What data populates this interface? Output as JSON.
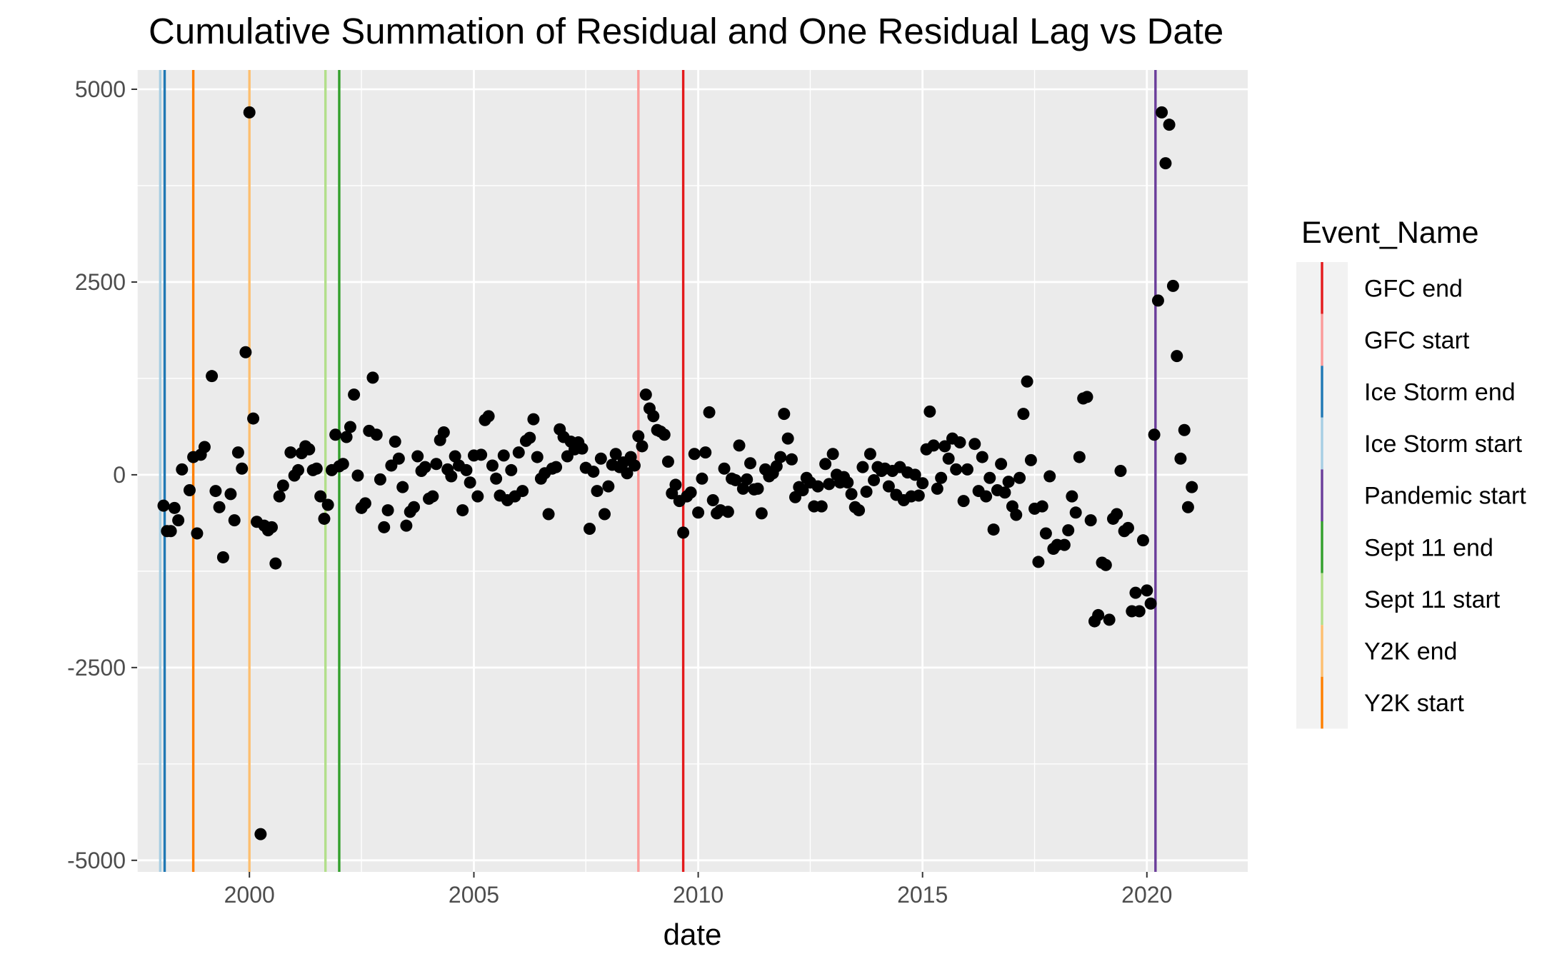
{
  "chart_data": {
    "type": "scatter",
    "title": "Cumulative Summation of Residual and One Residual Lag vs Date",
    "xlabel": "date",
    "ylabel": "",
    "x_type": "date",
    "xlim": [
      "1997-07-01",
      "2022-04-01"
    ],
    "ylim": [
      -5150,
      5250
    ],
    "x_ticks": [
      {
        "value": "2000-01-01",
        "label": "2000"
      },
      {
        "value": "2005-01-01",
        "label": "2005"
      },
      {
        "value": "2010-01-01",
        "label": "2010"
      },
      {
        "value": "2015-01-01",
        "label": "2015"
      },
      {
        "value": "2020-01-01",
        "label": "2020"
      }
    ],
    "x_minor_ticks": [
      "1997-07-01",
      "2002-07-01",
      "2007-07-01",
      "2012-07-01",
      "2017-07-01"
    ],
    "y_ticks": [
      {
        "value": 5000,
        "label": "5000"
      },
      {
        "value": 2500,
        "label": "2500"
      },
      {
        "value": 0,
        "label": "0"
      },
      {
        "value": -2500,
        "label": "-2500"
      },
      {
        "value": -5000,
        "label": "-5000"
      }
    ],
    "y_minor_ticks": [
      3750,
      1250,
      -1250,
      -3750
    ],
    "grid": true,
    "background": "#ebebeb",
    "point_color": "#000000",
    "legend": {
      "title": "Event_Name",
      "placement": "right",
      "entries": [
        {
          "label": "GFC end",
          "color": "#e31a1c"
        },
        {
          "label": "GFC start",
          "color": "#fb9a99"
        },
        {
          "label": "Ice Storm end",
          "color": "#1f78b4"
        },
        {
          "label": "Ice Storm start",
          "color": "#a6cee3"
        },
        {
          "label": "Pandemic start",
          "color": "#6a3d9a"
        },
        {
          "label": "Sept 11 end",
          "color": "#33a02c"
        },
        {
          "label": "Sept 11 start",
          "color": "#b2df8a"
        },
        {
          "label": "Y2K end",
          "color": "#fdbf6f"
        },
        {
          "label": "Y2K start",
          "color": "#ff7f00"
        }
      ]
    },
    "event_lines": [
      {
        "event": "Ice Storm start",
        "date": "1998-01-05",
        "color": "#a6cee3"
      },
      {
        "event": "Ice Storm end",
        "date": "1998-02-10",
        "color": "#1f78b4"
      },
      {
        "event": "Y2K start",
        "date": "1998-10-01",
        "color": "#ff7f00"
      },
      {
        "event": "Y2K end",
        "date": "2000-01-01",
        "color": "#fdbf6f"
      },
      {
        "event": "Sept 11 start",
        "date": "2001-09-11",
        "color": "#b2df8a"
      },
      {
        "event": "Sept 11 end",
        "date": "2002-01-01",
        "color": "#33a02c"
      },
      {
        "event": "GFC start",
        "date": "2008-09-01",
        "color": "#fb9a99"
      },
      {
        "event": "GFC end",
        "date": "2009-09-01",
        "color": "#e31a1c"
      },
      {
        "event": "Pandemic start",
        "date": "2020-03-11",
        "color": "#6a3d9a"
      }
    ],
    "points": [
      {
        "x": "1998-02-01",
        "y": -400
      },
      {
        "x": "1998-03-01",
        "y": -730
      },
      {
        "x": "1998-04-01",
        "y": -730
      },
      {
        "x": "1998-05-01",
        "y": -430
      },
      {
        "x": "1998-06-01",
        "y": -590
      },
      {
        "x": "1998-07-01",
        "y": 70
      },
      {
        "x": "1998-09-01",
        "y": -200
      },
      {
        "x": "1998-10-01",
        "y": 230
      },
      {
        "x": "1998-11-01",
        "y": -760
      },
      {
        "x": "1998-12-01",
        "y": 260
      },
      {
        "x": "1999-01-01",
        "y": 360
      },
      {
        "x": "1999-03-01",
        "y": 1280
      },
      {
        "x": "1999-04-01",
        "y": -210
      },
      {
        "x": "1999-05-01",
        "y": -420
      },
      {
        "x": "1999-06-01",
        "y": -1070
      },
      {
        "x": "1999-08-01",
        "y": -250
      },
      {
        "x": "1999-09-01",
        "y": -590
      },
      {
        "x": "1999-10-01",
        "y": 290
      },
      {
        "x": "1999-11-01",
        "y": 80
      },
      {
        "x": "1999-12-01",
        "y": 1590
      },
      {
        "x": "2000-01-01",
        "y": 4700
      },
      {
        "x": "2000-02-01",
        "y": 730
      },
      {
        "x": "2000-03-01",
        "y": -610
      },
      {
        "x": "2000-04-01",
        "y": -4660
      },
      {
        "x": "2000-05-01",
        "y": -660
      },
      {
        "x": "2000-06-01",
        "y": -720
      },
      {
        "x": "2000-07-01",
        "y": -680
      },
      {
        "x": "2000-08-01",
        "y": -1150
      },
      {
        "x": "2000-09-01",
        "y": -280
      },
      {
        "x": "2000-10-01",
        "y": -140
      },
      {
        "x": "2000-12-01",
        "y": 290
      },
      {
        "x": "2001-01-01",
        "y": -10
      },
      {
        "x": "2001-02-01",
        "y": 60
      },
      {
        "x": "2001-03-01",
        "y": 280
      },
      {
        "x": "2001-04-01",
        "y": 370
      },
      {
        "x": "2001-05-01",
        "y": 330
      },
      {
        "x": "2001-06-01",
        "y": 60
      },
      {
        "x": "2001-07-01",
        "y": 80
      },
      {
        "x": "2001-08-01",
        "y": -280
      },
      {
        "x": "2001-09-01",
        "y": -570
      },
      {
        "x": "2001-10-01",
        "y": -390
      },
      {
        "x": "2001-11-01",
        "y": 60
      },
      {
        "x": "2001-12-01",
        "y": 520
      },
      {
        "x": "2002-01-01",
        "y": 110
      },
      {
        "x": "2002-02-01",
        "y": 140
      },
      {
        "x": "2002-03-01",
        "y": 490
      },
      {
        "x": "2002-04-01",
        "y": 620
      },
      {
        "x": "2002-05-01",
        "y": 1040
      },
      {
        "x": "2002-06-01",
        "y": -10
      },
      {
        "x": "2002-07-01",
        "y": -430
      },
      {
        "x": "2002-08-01",
        "y": -370
      },
      {
        "x": "2002-09-01",
        "y": 570
      },
      {
        "x": "2002-10-01",
        "y": 1260
      },
      {
        "x": "2002-11-01",
        "y": 520
      },
      {
        "x": "2002-12-01",
        "y": -60
      },
      {
        "x": "2003-01-01",
        "y": -680
      },
      {
        "x": "2003-02-01",
        "y": -460
      },
      {
        "x": "2003-03-01",
        "y": 120
      },
      {
        "x": "2003-04-01",
        "y": 430
      },
      {
        "x": "2003-05-01",
        "y": 210
      },
      {
        "x": "2003-06-01",
        "y": -160
      },
      {
        "x": "2003-07-01",
        "y": -660
      },
      {
        "x": "2003-08-01",
        "y": -480
      },
      {
        "x": "2003-09-01",
        "y": -420
      },
      {
        "x": "2003-10-01",
        "y": 240
      },
      {
        "x": "2003-11-01",
        "y": 50
      },
      {
        "x": "2003-12-01",
        "y": 100
      },
      {
        "x": "2004-01-01",
        "y": -310
      },
      {
        "x": "2004-02-01",
        "y": -280
      },
      {
        "x": "2004-03-01",
        "y": 140
      },
      {
        "x": "2004-04-01",
        "y": 450
      },
      {
        "x": "2004-05-01",
        "y": 550
      },
      {
        "x": "2004-06-01",
        "y": 70
      },
      {
        "x": "2004-07-01",
        "y": -20
      },
      {
        "x": "2004-08-01",
        "y": 240
      },
      {
        "x": "2004-09-01",
        "y": 120
      },
      {
        "x": "2004-10-01",
        "y": -460
      },
      {
        "x": "2004-11-01",
        "y": 60
      },
      {
        "x": "2004-12-01",
        "y": -100
      },
      {
        "x": "2005-01-01",
        "y": 250
      },
      {
        "x": "2005-02-01",
        "y": -280
      },
      {
        "x": "2005-03-01",
        "y": 260
      },
      {
        "x": "2005-04-01",
        "y": 710
      },
      {
        "x": "2005-05-01",
        "y": 760
      },
      {
        "x": "2005-06-01",
        "y": 120
      },
      {
        "x": "2005-07-01",
        "y": -50
      },
      {
        "x": "2005-08-01",
        "y": -270
      },
      {
        "x": "2005-09-01",
        "y": 250
      },
      {
        "x": "2005-10-01",
        "y": -330
      },
      {
        "x": "2005-11-01",
        "y": 60
      },
      {
        "x": "2005-12-01",
        "y": -280
      },
      {
        "x": "2006-01-01",
        "y": 290
      },
      {
        "x": "2006-02-01",
        "y": -210
      },
      {
        "x": "2006-03-01",
        "y": 440
      },
      {
        "x": "2006-04-01",
        "y": 480
      },
      {
        "x": "2006-05-01",
        "y": 720
      },
      {
        "x": "2006-06-01",
        "y": 230
      },
      {
        "x": "2006-07-01",
        "y": -50
      },
      {
        "x": "2006-08-01",
        "y": 20
      },
      {
        "x": "2006-09-01",
        "y": -510
      },
      {
        "x": "2006-10-01",
        "y": 80
      },
      {
        "x": "2006-11-01",
        "y": 100
      },
      {
        "x": "2006-12-01",
        "y": 590
      },
      {
        "x": "2007-01-01",
        "y": 490
      },
      {
        "x": "2007-02-01",
        "y": 240
      },
      {
        "x": "2007-03-01",
        "y": 430
      },
      {
        "x": "2007-04-01",
        "y": 330
      },
      {
        "x": "2007-05-01",
        "y": 420
      },
      {
        "x": "2007-06-01",
        "y": 340
      },
      {
        "x": "2007-07-01",
        "y": 90
      },
      {
        "x": "2007-08-01",
        "y": -700
      },
      {
        "x": "2007-09-01",
        "y": 40
      },
      {
        "x": "2007-10-01",
        "y": -210
      },
      {
        "x": "2007-11-01",
        "y": 210
      },
      {
        "x": "2007-12-01",
        "y": -510
      },
      {
        "x": "2008-01-01",
        "y": -150
      },
      {
        "x": "2008-02-01",
        "y": 130
      },
      {
        "x": "2008-03-01",
        "y": 270
      },
      {
        "x": "2008-04-01",
        "y": 100
      },
      {
        "x": "2008-05-01",
        "y": 160
      },
      {
        "x": "2008-06-01",
        "y": 20
      },
      {
        "x": "2008-07-01",
        "y": 230
      },
      {
        "x": "2008-08-01",
        "y": 120
      },
      {
        "x": "2008-09-01",
        "y": 500
      },
      {
        "x": "2008-10-01",
        "y": 370
      },
      {
        "x": "2008-11-01",
        "y": 1040
      },
      {
        "x": "2008-12-01",
        "y": 860
      },
      {
        "x": "2009-01-01",
        "y": 760
      },
      {
        "x": "2009-02-01",
        "y": 580
      },
      {
        "x": "2009-03-01",
        "y": 560
      },
      {
        "x": "2009-04-01",
        "y": 520
      },
      {
        "x": "2009-05-01",
        "y": 170
      },
      {
        "x": "2009-06-01",
        "y": -240
      },
      {
        "x": "2009-07-01",
        "y": -130
      },
      {
        "x": "2009-08-01",
        "y": -340
      },
      {
        "x": "2009-09-01",
        "y": -750
      },
      {
        "x": "2009-10-01",
        "y": -280
      },
      {
        "x": "2009-11-01",
        "y": -230
      },
      {
        "x": "2009-12-01",
        "y": 270
      },
      {
        "x": "2010-01-01",
        "y": -490
      },
      {
        "x": "2010-02-01",
        "y": -50
      },
      {
        "x": "2010-03-01",
        "y": 290
      },
      {
        "x": "2010-04-01",
        "y": 810
      },
      {
        "x": "2010-05-01",
        "y": -330
      },
      {
        "x": "2010-06-01",
        "y": -500
      },
      {
        "x": "2010-07-01",
        "y": -460
      },
      {
        "x": "2010-08-01",
        "y": 80
      },
      {
        "x": "2010-09-01",
        "y": -480
      },
      {
        "x": "2010-10-01",
        "y": -50
      },
      {
        "x": "2010-11-01",
        "y": -70
      },
      {
        "x": "2010-12-01",
        "y": 380
      },
      {
        "x": "2011-01-01",
        "y": -180
      },
      {
        "x": "2011-02-01",
        "y": -60
      },
      {
        "x": "2011-03-01",
        "y": 150
      },
      {
        "x": "2011-04-01",
        "y": -190
      },
      {
        "x": "2011-05-01",
        "y": -180
      },
      {
        "x": "2011-06-01",
        "y": -500
      },
      {
        "x": "2011-07-01",
        "y": 70
      },
      {
        "x": "2011-08-01",
        "y": -20
      },
      {
        "x": "2011-09-01",
        "y": 20
      },
      {
        "x": "2011-10-01",
        "y": 110
      },
      {
        "x": "2011-11-01",
        "y": 230
      },
      {
        "x": "2011-12-01",
        "y": 790
      },
      {
        "x": "2012-01-01",
        "y": 470
      },
      {
        "x": "2012-02-01",
        "y": 200
      },
      {
        "x": "2012-03-01",
        "y": -290
      },
      {
        "x": "2012-04-01",
        "y": -160
      },
      {
        "x": "2012-05-01",
        "y": -200
      },
      {
        "x": "2012-06-01",
        "y": -40
      },
      {
        "x": "2012-07-01",
        "y": -100
      },
      {
        "x": "2012-08-01",
        "y": -410
      },
      {
        "x": "2012-09-01",
        "y": -150
      },
      {
        "x": "2012-10-01",
        "y": -410
      },
      {
        "x": "2012-11-01",
        "y": 140
      },
      {
        "x": "2012-12-01",
        "y": -120
      },
      {
        "x": "2013-01-01",
        "y": 270
      },
      {
        "x": "2013-02-01",
        "y": 0
      },
      {
        "x": "2013-03-01",
        "y": -100
      },
      {
        "x": "2013-04-01",
        "y": -30
      },
      {
        "x": "2013-05-01",
        "y": -100
      },
      {
        "x": "2013-06-01",
        "y": -250
      },
      {
        "x": "2013-07-01",
        "y": -420
      },
      {
        "x": "2013-08-01",
        "y": -460
      },
      {
        "x": "2013-09-01",
        "y": 100
      },
      {
        "x": "2013-10-01",
        "y": -220
      },
      {
        "x": "2013-11-01",
        "y": 270
      },
      {
        "x": "2013-12-01",
        "y": -70
      },
      {
        "x": "2014-01-01",
        "y": 100
      },
      {
        "x": "2014-02-01",
        "y": 50
      },
      {
        "x": "2014-03-01",
        "y": 80
      },
      {
        "x": "2014-04-01",
        "y": -150
      },
      {
        "x": "2014-05-01",
        "y": 50
      },
      {
        "x": "2014-06-01",
        "y": -260
      },
      {
        "x": "2014-07-01",
        "y": 100
      },
      {
        "x": "2014-08-01",
        "y": -330
      },
      {
        "x": "2014-09-01",
        "y": 30
      },
      {
        "x": "2014-10-01",
        "y": -280
      },
      {
        "x": "2014-11-01",
        "y": 0
      },
      {
        "x": "2014-12-01",
        "y": -270
      },
      {
        "x": "2015-01-01",
        "y": -110
      },
      {
        "x": "2015-02-01",
        "y": 330
      },
      {
        "x": "2015-03-01",
        "y": 820
      },
      {
        "x": "2015-04-01",
        "y": 380
      },
      {
        "x": "2015-05-01",
        "y": -180
      },
      {
        "x": "2015-06-01",
        "y": -40
      },
      {
        "x": "2015-07-01",
        "y": 370
      },
      {
        "x": "2015-08-01",
        "y": 210
      },
      {
        "x": "2015-09-01",
        "y": 470
      },
      {
        "x": "2015-10-01",
        "y": 70
      },
      {
        "x": "2015-11-01",
        "y": 420
      },
      {
        "x": "2015-12-01",
        "y": -340
      },
      {
        "x": "2016-01-01",
        "y": 70
      },
      {
        "x": "2016-03-01",
        "y": 400
      },
      {
        "x": "2016-04-01",
        "y": -210
      },
      {
        "x": "2016-05-01",
        "y": 230
      },
      {
        "x": "2016-06-01",
        "y": -280
      },
      {
        "x": "2016-07-01",
        "y": -40
      },
      {
        "x": "2016-08-01",
        "y": -710
      },
      {
        "x": "2016-09-01",
        "y": -200
      },
      {
        "x": "2016-10-01",
        "y": 140
      },
      {
        "x": "2016-11-01",
        "y": -230
      },
      {
        "x": "2016-12-01",
        "y": -90
      },
      {
        "x": "2017-01-01",
        "y": -410
      },
      {
        "x": "2017-02-01",
        "y": -520
      },
      {
        "x": "2017-03-01",
        "y": -40
      },
      {
        "x": "2017-04-01",
        "y": 790
      },
      {
        "x": "2017-05-01",
        "y": 1210
      },
      {
        "x": "2017-06-01",
        "y": 190
      },
      {
        "x": "2017-07-01",
        "y": -440
      },
      {
        "x": "2017-08-01",
        "y": -1130
      },
      {
        "x": "2017-09-01",
        "y": -410
      },
      {
        "x": "2017-10-01",
        "y": -760
      },
      {
        "x": "2017-11-01",
        "y": -20
      },
      {
        "x": "2017-12-01",
        "y": -960
      },
      {
        "x": "2018-01-01",
        "y": -910
      },
      {
        "x": "2018-03-01",
        "y": -910
      },
      {
        "x": "2018-04-01",
        "y": -720
      },
      {
        "x": "2018-05-01",
        "y": -280
      },
      {
        "x": "2018-06-01",
        "y": -490
      },
      {
        "x": "2018-07-01",
        "y": 230
      },
      {
        "x": "2018-08-01",
        "y": 990
      },
      {
        "x": "2018-09-01",
        "y": 1010
      },
      {
        "x": "2018-10-01",
        "y": -590
      },
      {
        "x": "2018-11-01",
        "y": -1900
      },
      {
        "x": "2018-12-01",
        "y": -1820
      },
      {
        "x": "2019-01-01",
        "y": -1140
      },
      {
        "x": "2019-02-01",
        "y": -1170
      },
      {
        "x": "2019-03-01",
        "y": -1880
      },
      {
        "x": "2019-04-01",
        "y": -570
      },
      {
        "x": "2019-05-01",
        "y": -510
      },
      {
        "x": "2019-06-01",
        "y": 50
      },
      {
        "x": "2019-07-01",
        "y": -730
      },
      {
        "x": "2019-08-01",
        "y": -690
      },
      {
        "x": "2019-09-01",
        "y": -1770
      },
      {
        "x": "2019-10-01",
        "y": -1530
      },
      {
        "x": "2019-11-01",
        "y": -1770
      },
      {
        "x": "2019-12-01",
        "y": -850
      },
      {
        "x": "2020-01-01",
        "y": -1500
      },
      {
        "x": "2020-02-01",
        "y": -1670
      },
      {
        "x": "2020-03-01",
        "y": 520
      },
      {
        "x": "2020-04-01",
        "y": 2260
      },
      {
        "x": "2020-05-01",
        "y": 4700
      },
      {
        "x": "2020-06-01",
        "y": 4040
      },
      {
        "x": "2020-07-01",
        "y": 4540
      },
      {
        "x": "2020-08-01",
        "y": 2450
      },
      {
        "x": "2020-09-01",
        "y": 1540
      },
      {
        "x": "2020-10-01",
        "y": 210
      },
      {
        "x": "2020-11-01",
        "y": 580
      },
      {
        "x": "2020-12-01",
        "y": -420
      },
      {
        "x": "2021-01-01",
        "y": -160
      }
    ]
  }
}
